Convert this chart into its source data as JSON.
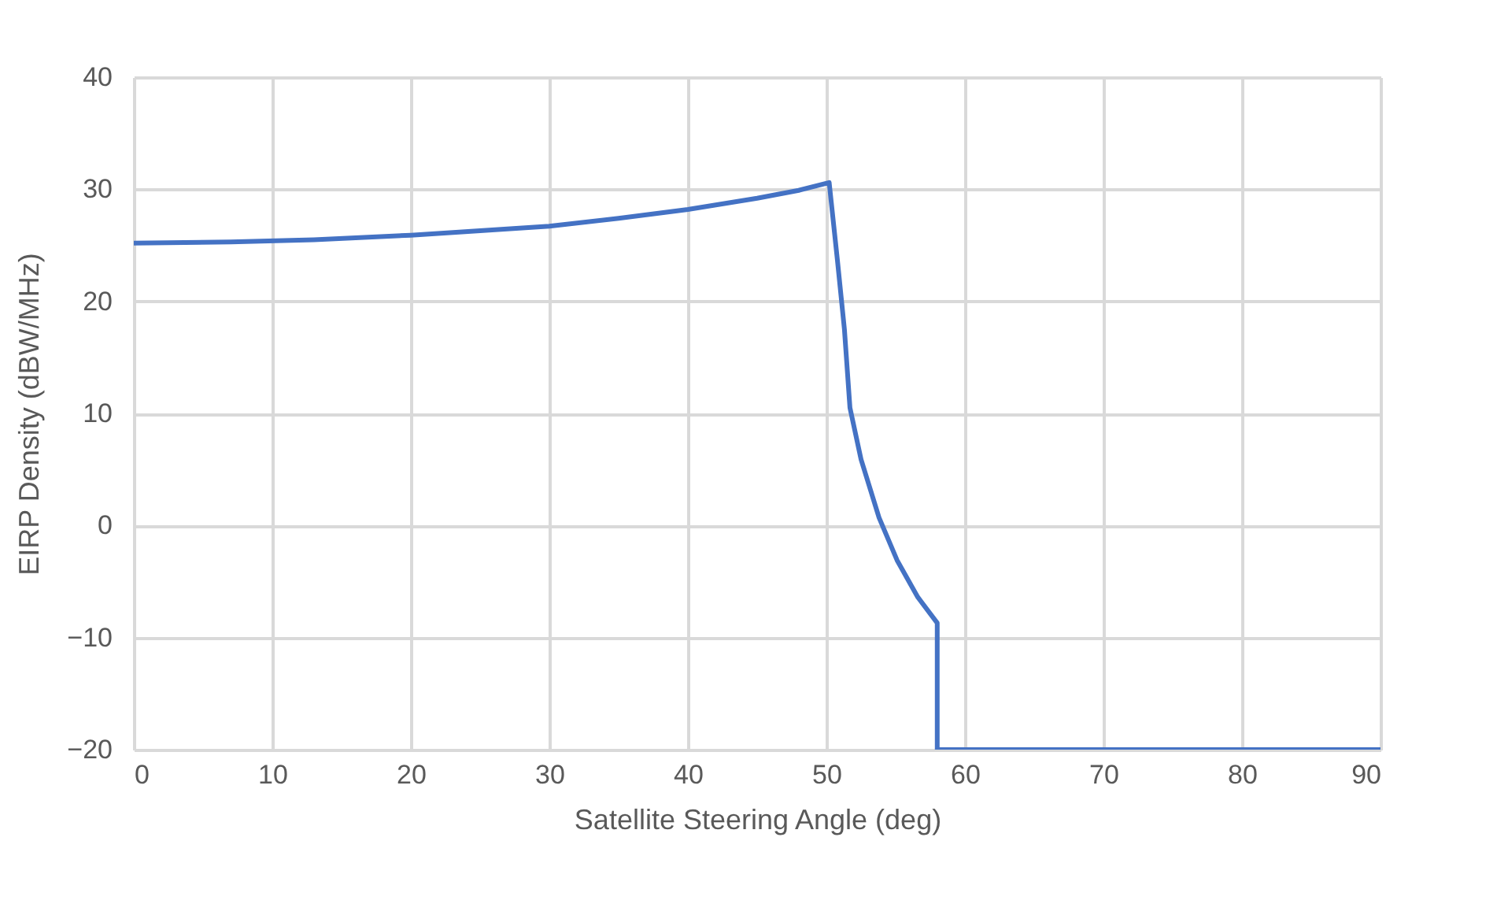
{
  "chart_data": {
    "type": "line",
    "xlabel": "Satellite Steering Angle (deg)",
    "ylabel": "EIRP Density (dBW/MHz)",
    "xlim": [
      0,
      90
    ],
    "xticks": [
      0,
      10,
      20,
      30,
      40,
      50,
      60,
      70,
      80,
      90
    ],
    "ylim": [
      -20,
      40
    ],
    "yticks": [
      -20,
      -10,
      0,
      10,
      20,
      30,
      40
    ],
    "grid": true,
    "legend": false,
    "series": [
      {
        "color": "#4472c4",
        "x": [
          0,
          7,
          13,
          20,
          25,
          30,
          35,
          40,
          45,
          48,
          50.2,
          50.8,
          51.3,
          51.7,
          52.5,
          53.8,
          55.1,
          56.6,
          58,
          58,
          90
        ],
        "values": [
          25.2,
          25.3,
          25.5,
          25.9,
          26.3,
          26.7,
          27.4,
          28.2,
          29.2,
          29.9,
          30.6,
          23.6,
          17.5,
          10.5,
          5.9,
          0.7,
          -3.1,
          -6.4,
          -8.7,
          -20,
          -20
        ]
      }
    ]
  }
}
